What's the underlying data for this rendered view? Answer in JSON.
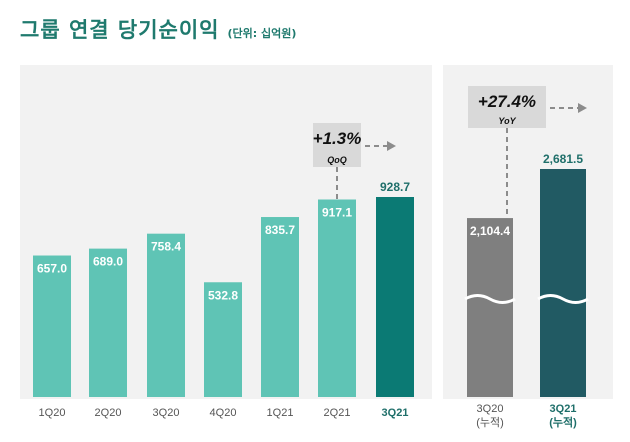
{
  "header": {
    "title": "그룹 연결 당기순이익",
    "unit": "(단위: 십억원)"
  },
  "chart_data": [
    {
      "type": "bar",
      "categories": [
        "1Q20",
        "2Q20",
        "3Q20",
        "4Q20",
        "1Q21",
        "2Q21",
        "3Q21"
      ],
      "values": [
        657.0,
        689.0,
        758.4,
        532.8,
        835.7,
        917.1,
        928.7
      ],
      "value_labels": [
        "657.0",
        "689.0",
        "758.4",
        "532.8",
        "835.7",
        "917.1",
        "928.7"
      ],
      "highlight_index": 6,
      "colors": {
        "bar": "#5fc4b5",
        "highlight": "#0b7a74",
        "highlight_label": "#1f6f6a"
      },
      "annotation": {
        "main": "+1.3%",
        "sub": "QoQ"
      }
    },
    {
      "type": "bar",
      "categories": [
        "3Q20\n(누적)",
        "3Q21\n(누적)"
      ],
      "values": [
        2104.4,
        2681.5
      ],
      "value_labels": [
        "2,104.4",
        "2,681.5"
      ],
      "axis_break": true,
      "colors": {
        "bars": [
          "#7f7f7f",
          "#215a63"
        ],
        "labels": [
          "#ffffff",
          "#1f6f6a"
        ],
        "ticks": [
          "#555555",
          "#1f6f6a"
        ]
      },
      "annotation": {
        "main": "+27.4%",
        "sub": "YoY"
      }
    }
  ]
}
